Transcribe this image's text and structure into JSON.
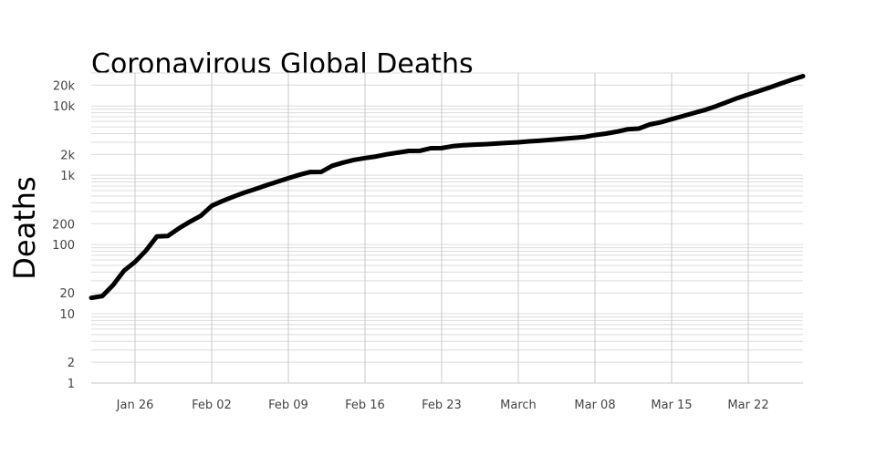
{
  "chart_data": {
    "type": "line",
    "title": "Coronavirous Global Deaths",
    "xlabel": "",
    "ylabel": "Deaths",
    "yscale": "log",
    "ylim": [
      1,
      30000
    ],
    "xlim": [
      "2020-01-22",
      "2020-03-27"
    ],
    "grid": true,
    "colors": {
      "line": "#000000",
      "grid_major": "#c8c8c8",
      "grid_minor": "#dcdcdc",
      "tick_text": "#444444"
    },
    "y_ticks": [
      {
        "value": 1,
        "label": "1"
      },
      {
        "value": 2,
        "label": "2"
      },
      {
        "value": 10,
        "label": "10"
      },
      {
        "value": 20,
        "label": "20"
      },
      {
        "value": 100,
        "label": "100"
      },
      {
        "value": 200,
        "label": "200"
      },
      {
        "value": 1000,
        "label": "1k"
      },
      {
        "value": 2000,
        "label": "2k"
      },
      {
        "value": 10000,
        "label": "10k"
      },
      {
        "value": 20000,
        "label": "20k"
      }
    ],
    "x_ticks": [
      {
        "date": "2020-01-26",
        "label": "Jan 26"
      },
      {
        "date": "2020-02-02",
        "label": "Feb 02"
      },
      {
        "date": "2020-02-09",
        "label": "Feb 09"
      },
      {
        "date": "2020-02-16",
        "label": "Feb 16"
      },
      {
        "date": "2020-02-23",
        "label": "Feb 23"
      },
      {
        "date": "2020-03-01",
        "label": "March"
      },
      {
        "date": "2020-03-08",
        "label": "Mar 08"
      },
      {
        "date": "2020-03-15",
        "label": "Mar 15"
      },
      {
        "date": "2020-03-22",
        "label": "Mar 22"
      }
    ],
    "series": [
      {
        "x": [
          "2020-01-22",
          "2020-01-23",
          "2020-01-24",
          "2020-01-25",
          "2020-01-26",
          "2020-01-27",
          "2020-01-28",
          "2020-01-29",
          "2020-01-30",
          "2020-01-31",
          "2020-02-01",
          "2020-02-02",
          "2020-02-03",
          "2020-02-04",
          "2020-02-05",
          "2020-02-06",
          "2020-02-07",
          "2020-02-08",
          "2020-02-09",
          "2020-02-10",
          "2020-02-11",
          "2020-02-12",
          "2020-02-13",
          "2020-02-14",
          "2020-02-15",
          "2020-02-16",
          "2020-02-17",
          "2020-02-18",
          "2020-02-19",
          "2020-02-20",
          "2020-02-21",
          "2020-02-22",
          "2020-02-23",
          "2020-02-24",
          "2020-02-25",
          "2020-02-26",
          "2020-02-27",
          "2020-02-28",
          "2020-02-29",
          "2020-03-01",
          "2020-03-02",
          "2020-03-03",
          "2020-03-04",
          "2020-03-05",
          "2020-03-06",
          "2020-03-07",
          "2020-03-08",
          "2020-03-09",
          "2020-03-10",
          "2020-03-11",
          "2020-03-12",
          "2020-03-13",
          "2020-03-14",
          "2020-03-15",
          "2020-03-16",
          "2020-03-17",
          "2020-03-18",
          "2020-03-19",
          "2020-03-20",
          "2020-03-21",
          "2020-03-22",
          "2020-03-23",
          "2020-03-24",
          "2020-03-25",
          "2020-03-26",
          "2020-03-27"
        ],
        "values": [
          17,
          18,
          26,
          42,
          56,
          82,
          131,
          133,
          171,
          213,
          259,
          362,
          426,
          492,
          564,
          634,
          719,
          806,
          906,
          1013,
          1113,
          1118,
          1371,
          1523,
          1666,
          1770,
          1868,
          2007,
          2122,
          2247,
          2251,
          2458,
          2469,
          2629,
          2708,
          2770,
          2814,
          2872,
          2941,
          2996,
          3085,
          3160,
          3254,
          3348,
          3460,
          3558,
          3803,
          3996,
          4262,
          4615,
          4720,
          5404,
          5819,
          6440,
          7126,
          7905,
          8733,
          9867,
          11299,
          12973,
          14651,
          16505,
          18625,
          21181,
          23970,
          27000
        ]
      }
    ]
  }
}
